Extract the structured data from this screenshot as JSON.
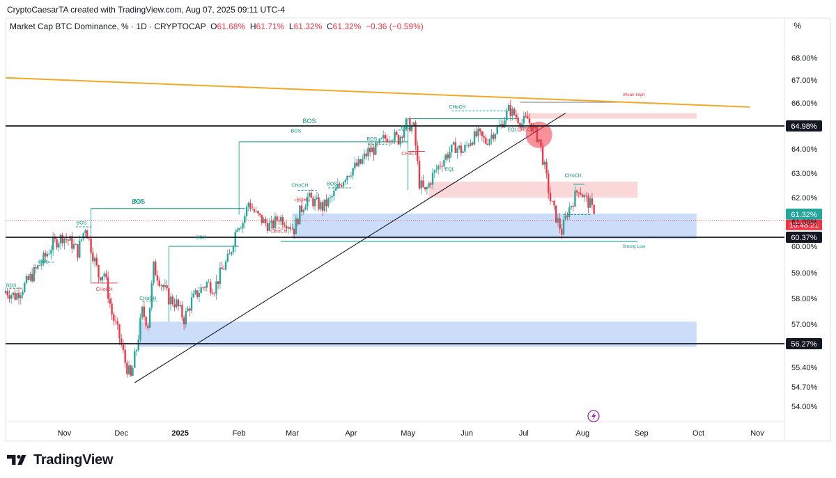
{
  "header": {
    "created_by": "CryptoCaesarTA created with TradingView.com, Aug 07, 2025 09:11 UTC-4",
    "symbol": "Market Cap BTC Dominance, % · 1D · CRYPTOCAP",
    "o_label": "O",
    "o_value": "61.68%",
    "h_label": "H",
    "h_value": "61.71%",
    "l_label": "L",
    "l_value": "61.32%",
    "c_label": "C",
    "c_value": "61.32%",
    "change": "−0.36 (−0.59%)",
    "unit_button": "%"
  },
  "footer": {
    "brand": "TradingView"
  },
  "colors": {
    "bull": "#26a69a",
    "bear": "#f23645",
    "structure_green": "#089981",
    "structure_red": "#f23645",
    "trendline_orange": "#f5a623",
    "demand_zone": "#bbd2f7",
    "supply_zone": "#f9cdd0"
  },
  "chart_data": {
    "type": "candlestick",
    "title": "Market Cap BTC Dominance, % · 1D · CRYPTOCAP",
    "y_axis": {
      "unit": "%",
      "tick_labels": [
        "54.00%",
        "54.70%",
        "55.40%",
        "56.27%",
        "57.00%",
        "58.00%",
        "59.00%",
        "60.00%",
        "60.37%",
        "61.00%",
        "61.32%",
        "62.00%",
        "63.00%",
        "64.00%",
        "64.98%",
        "66.00%",
        "67.00%",
        "68.00%"
      ],
      "ticks": [
        {
          "value": 68.0,
          "label": "68.00%"
        },
        {
          "value": 67.0,
          "label": "67.00%"
        },
        {
          "value": 66.0,
          "label": "66.00%"
        },
        {
          "value": 64.0,
          "label": "64.00%"
        },
        {
          "value": 63.0,
          "label": "63.00%"
        },
        {
          "value": 62.0,
          "label": "62.00%"
        },
        {
          "value": 61.0,
          "label": "61.00%"
        },
        {
          "value": 60.0,
          "label": "60.00%"
        },
        {
          "value": 59.0,
          "label": "59.00%"
        },
        {
          "value": 58.0,
          "label": "58.00%"
        },
        {
          "value": 57.0,
          "label": "57.00%"
        },
        {
          "value": 55.4,
          "label": "55.40%"
        },
        {
          "value": 54.7,
          "label": "54.70%"
        },
        {
          "value": 54.0,
          "label": "54.00%"
        }
      ]
    },
    "x_axis": {
      "labels": [
        {
          "label": "Nov",
          "date": "2024-11-01"
        },
        {
          "label": "Dec",
          "date": "2024-12-01"
        },
        {
          "label": "2025",
          "date": "2025-01-01",
          "bold": true
        },
        {
          "label": "Feb",
          "date": "2025-02-01"
        },
        {
          "label": "Mar",
          "date": "2025-03-01"
        },
        {
          "label": "Apr",
          "date": "2025-04-01"
        },
        {
          "label": "May",
          "date": "2025-05-01"
        },
        {
          "label": "Jun",
          "date": "2025-06-01"
        },
        {
          "label": "Jul",
          "date": "2025-07-01"
        },
        {
          "label": "Aug",
          "date": "2025-08-01"
        },
        {
          "label": "Sep",
          "date": "2025-09-01"
        },
        {
          "label": "Oct",
          "date": "2025-10-01"
        },
        {
          "label": "Nov",
          "date": "2025-11-01"
        }
      ]
    },
    "horizontal_levels": [
      {
        "value": 64.98,
        "label": "64.98%",
        "badge": "dark"
      },
      {
        "value": 60.37,
        "label": "60.37%",
        "badge": "dark"
      },
      {
        "value": 56.27,
        "label": "56.27%",
        "badge": "dark"
      }
    ],
    "last_price": {
      "value": 61.32,
      "label": "61.32%",
      "countdown": "10:48:21"
    },
    "trendlines": [
      {
        "name": "descending resistance",
        "color": "#f5a623",
        "start": {
          "date": "2024-10-01",
          "value": 67.1
        },
        "end": {
          "date": "2025-10-28",
          "value": 65.82
        }
      },
      {
        "name": "ascending support",
        "color": "#131722",
        "start": {
          "date": "2024-12-08",
          "value": 54.85
        },
        "end": {
          "date": "2025-07-23",
          "value": 65.55
        }
      }
    ],
    "zones": [
      {
        "kind": "demand",
        "start": "2025-03-01",
        "end": "2025-09-30",
        "low": 60.3,
        "high": 61.35
      },
      {
        "kind": "demand",
        "start": "2024-12-10",
        "end": "2025-09-30",
        "low": 56.15,
        "high": 57.1
      },
      {
        "kind": "supply",
        "start": "2025-05-12",
        "end": "2025-08-30",
        "low": 62.0,
        "high": 62.65
      },
      {
        "kind": "supply",
        "start": "2025-07-01",
        "end": "2025-09-30",
        "low": 65.3,
        "high": 65.55
      }
    ],
    "annotations": [
      {
        "text": "BOS",
        "date": "2024-10-04",
        "value": 58.45,
        "color": "green"
      },
      {
        "text": "BOS",
        "date": "2024-10-21",
        "value": 59.35,
        "color": "green"
      },
      {
        "text": "BOS",
        "date": "2024-11-10",
        "value": 60.9,
        "color": "green"
      },
      {
        "text": "CHoCH",
        "date": "2024-11-22",
        "value": 58.3,
        "color": "red"
      },
      {
        "text": "BOS",
        "date": "2024-12-10",
        "value": 61.8,
        "color": "green"
      },
      {
        "text": "CHoCH",
        "date": "2024-12-15",
        "value": 57.95,
        "color": "green"
      },
      {
        "text": "BOS",
        "date": "2025-01-12",
        "value": 60.3,
        "color": "green"
      },
      {
        "text": "BOS",
        "date": "2025-03-03",
        "value": 64.7,
        "color": "green"
      },
      {
        "text": "CHoCH",
        "date": "2025-02-22",
        "value": 60.55,
        "color": "red"
      },
      {
        "text": "CHoCH",
        "date": "2025-03-05",
        "value": 62.45,
        "color": "green"
      },
      {
        "text": "EQH",
        "date": "2025-03-06",
        "value": 61.85,
        "color": "red"
      },
      {
        "text": "BOS",
        "date": "2025-03-22",
        "value": 62.5,
        "color": "green"
      },
      {
        "text": "BOS",
        "date": "2025-04-12",
        "value": 64.35,
        "color": "green"
      },
      {
        "text": "BOS",
        "date": "2025-04-30",
        "value": 64.85,
        "color": "green"
      },
      {
        "text": "CHoCH",
        "date": "2025-05-02",
        "value": 63.75,
        "color": "red"
      },
      {
        "text": "EQL",
        "date": "2025-05-23",
        "value": 63.1,
        "color": "green"
      },
      {
        "text": "CHoCH",
        "date": "2025-05-27",
        "value": 65.75,
        "color": "green"
      },
      {
        "text": "EQL",
        "date": "2025-06-25",
        "value": 64.75,
        "color": "green"
      },
      {
        "text": "CHoCH",
        "date": "2025-07-02",
        "value": 64.75,
        "color": "red"
      },
      {
        "text": "Weak High",
        "date": "2025-08-28",
        "value": 66.3,
        "color": "red"
      },
      {
        "text": "CHoCH",
        "date": "2025-07-27",
        "value": 62.85,
        "color": "green"
      },
      {
        "text": "Strong Low",
        "date": "2025-08-28",
        "value": 59.95,
        "color": "green"
      }
    ],
    "candles_approx": [
      [
        "2024-10-01",
        58.2,
        58.4,
        57.9,
        58.3
      ],
      [
        "2024-10-06",
        58.3,
        58.5,
        57.9,
        58.1
      ],
      [
        "2024-10-11",
        58.1,
        58.6,
        57.9,
        58.5
      ],
      [
        "2024-10-16",
        58.5,
        59.1,
        58.3,
        59.0
      ],
      [
        "2024-10-21",
        59.0,
        59.7,
        58.8,
        59.5
      ],
      [
        "2024-10-26",
        59.5,
        60.3,
        59.3,
        60.1
      ],
      [
        "2024-10-31",
        60.1,
        60.6,
        59.6,
        60.4
      ],
      [
        "2024-11-04",
        60.4,
        60.8,
        59.8,
        60.2
      ],
      [
        "2024-11-08",
        60.2,
        60.5,
        59.3,
        59.8
      ],
      [
        "2024-11-12",
        59.8,
        61.1,
        59.5,
        60.8
      ],
      [
        "2024-11-16",
        60.8,
        61.2,
        59.4,
        59.7
      ],
      [
        "2024-11-19",
        59.7,
        60.1,
        58.6,
        58.9
      ],
      [
        "2024-11-22",
        58.9,
        59.3,
        58.2,
        59.0
      ],
      [
        "2024-11-26",
        59.0,
        59.2,
        57.0,
        57.4
      ],
      [
        "2024-11-30",
        57.4,
        57.9,
        56.1,
        56.5
      ],
      [
        "2024-12-03",
        56.5,
        56.8,
        55.1,
        55.6
      ],
      [
        "2024-12-06",
        55.6,
        56.0,
        54.7,
        55.0
      ],
      [
        "2024-12-09",
        55.0,
        56.4,
        54.8,
        56.1
      ],
      [
        "2024-12-12",
        56.1,
        57.9,
        55.9,
        57.5
      ],
      [
        "2024-12-15",
        57.5,
        58.1,
        56.5,
        57.0
      ],
      [
        "2024-12-18",
        57.0,
        59.5,
        56.8,
        59.2
      ],
      [
        "2024-12-22",
        59.2,
        59.6,
        58.3,
        58.6
      ],
      [
        "2024-12-26",
        58.6,
        59.1,
        57.6,
        58.0
      ],
      [
        "2024-12-30",
        58.0,
        58.5,
        57.2,
        57.8
      ],
      [
        "2025-01-03",
        57.8,
        58.3,
        56.9,
        57.2
      ],
      [
        "2025-01-07",
        57.2,
        58.1,
        57.0,
        57.9
      ],
      [
        "2025-01-11",
        57.9,
        58.6,
        57.4,
        58.3
      ],
      [
        "2025-01-15",
        58.3,
        58.9,
        57.9,
        58.6
      ],
      [
        "2025-01-19",
        58.6,
        59.0,
        58.0,
        58.4
      ],
      [
        "2025-01-23",
        58.4,
        59.3,
        58.2,
        59.1
      ],
      [
        "2025-01-27",
        59.1,
        59.9,
        58.9,
        59.6
      ],
      [
        "2025-01-31",
        59.6,
        61.1,
        59.3,
        60.9
      ],
      [
        "2025-02-03",
        60.9,
        61.6,
        60.5,
        61.0
      ],
      [
        "2025-02-06",
        61.0,
        62.1,
        60.8,
        61.8
      ],
      [
        "2025-02-10",
        61.8,
        62.0,
        61.1,
        61.3
      ],
      [
        "2025-02-14",
        61.3,
        61.6,
        60.7,
        61.0
      ],
      [
        "2025-02-18",
        61.0,
        61.4,
        60.5,
        60.8
      ],
      [
        "2025-02-22",
        60.8,
        61.6,
        60.4,
        61.2
      ],
      [
        "2025-02-26",
        61.2,
        61.7,
        60.6,
        61.0
      ],
      [
        "2025-03-02",
        61.0,
        61.4,
        60.4,
        60.7
      ],
      [
        "2025-03-05",
        60.7,
        61.6,
        60.5,
        61.4
      ],
      [
        "2025-03-09",
        61.4,
        62.3,
        61.2,
        62.0
      ],
      [
        "2025-03-13",
        62.0,
        62.4,
        61.6,
        61.8
      ],
      [
        "2025-03-17",
        61.8,
        62.1,
        61.4,
        61.6
      ],
      [
        "2025-03-21",
        61.6,
        62.0,
        61.3,
        61.9
      ],
      [
        "2025-03-25",
        61.9,
        62.6,
        61.7,
        62.4
      ],
      [
        "2025-03-29",
        62.4,
        63.1,
        62.2,
        62.9
      ],
      [
        "2025-04-02",
        62.9,
        63.4,
        62.6,
        63.2
      ],
      [
        "2025-04-06",
        63.2,
        63.6,
        62.8,
        63.4
      ],
      [
        "2025-04-10",
        63.4,
        64.1,
        63.2,
        63.9
      ],
      [
        "2025-04-14",
        63.9,
        64.3,
        63.6,
        64.0
      ],
      [
        "2025-04-18",
        64.0,
        64.6,
        63.8,
        64.4
      ],
      [
        "2025-04-22",
        64.4,
        64.9,
        64.1,
        64.6
      ],
      [
        "2025-04-26",
        64.6,
        64.9,
        64.2,
        64.4
      ],
      [
        "2025-04-30",
        64.4,
        65.3,
        64.2,
        65.1
      ],
      [
        "2025-05-04",
        65.1,
        65.4,
        64.6,
        64.9
      ],
      [
        "2025-05-07",
        64.9,
        65.0,
        62.3,
        62.6
      ],
      [
        "2025-05-10",
        62.6,
        62.8,
        61.9,
        62.2
      ],
      [
        "2025-05-14",
        62.2,
        63.1,
        62.0,
        62.9
      ],
      [
        "2025-05-18",
        62.9,
        63.6,
        62.7,
        63.4
      ],
      [
        "2025-05-22",
        63.4,
        64.0,
        63.1,
        63.8
      ],
      [
        "2025-05-26",
        63.8,
        64.3,
        63.5,
        64.1
      ],
      [
        "2025-05-30",
        64.1,
        64.5,
        63.6,
        63.9
      ],
      [
        "2025-06-03",
        63.9,
        64.6,
        63.7,
        64.4
      ],
      [
        "2025-06-07",
        64.4,
        64.9,
        64.1,
        64.6
      ],
      [
        "2025-06-11",
        64.6,
        64.9,
        64.0,
        64.3
      ],
      [
        "2025-06-15",
        64.3,
        64.8,
        64.0,
        64.7
      ],
      [
        "2025-06-19",
        64.7,
        65.2,
        64.5,
        65.0
      ],
      [
        "2025-06-23",
        65.0,
        65.9,
        64.8,
        65.7
      ],
      [
        "2025-06-26",
        65.7,
        66.0,
        65.2,
        65.5
      ],
      [
        "2025-06-30",
        65.5,
        65.7,
        64.9,
        65.1
      ],
      [
        "2025-07-03",
        65.1,
        65.5,
        64.7,
        65.3
      ],
      [
        "2025-07-06",
        65.3,
        65.4,
        64.5,
        64.8
      ],
      [
        "2025-07-09",
        64.8,
        65.0,
        64.2,
        64.4
      ],
      [
        "2025-07-12",
        64.4,
        64.6,
        62.9,
        63.2
      ],
      [
        "2025-07-15",
        63.2,
        63.4,
        61.6,
        61.9
      ],
      [
        "2025-07-18",
        61.9,
        62.1,
        60.9,
        61.2
      ],
      [
        "2025-07-21",
        61.2,
        61.3,
        60.4,
        60.6
      ],
      [
        "2025-07-24",
        60.6,
        61.6,
        60.5,
        61.4
      ],
      [
        "2025-07-27",
        61.4,
        62.1,
        61.0,
        61.9
      ],
      [
        "2025-07-30",
        61.9,
        62.6,
        61.6,
        62.4
      ],
      [
        "2025-08-02",
        62.4,
        62.6,
        61.8,
        62.0
      ],
      [
        "2025-08-05",
        62.0,
        62.1,
        61.4,
        61.7
      ],
      [
        "2025-08-07",
        61.68,
        61.71,
        61.32,
        61.32
      ]
    ]
  }
}
